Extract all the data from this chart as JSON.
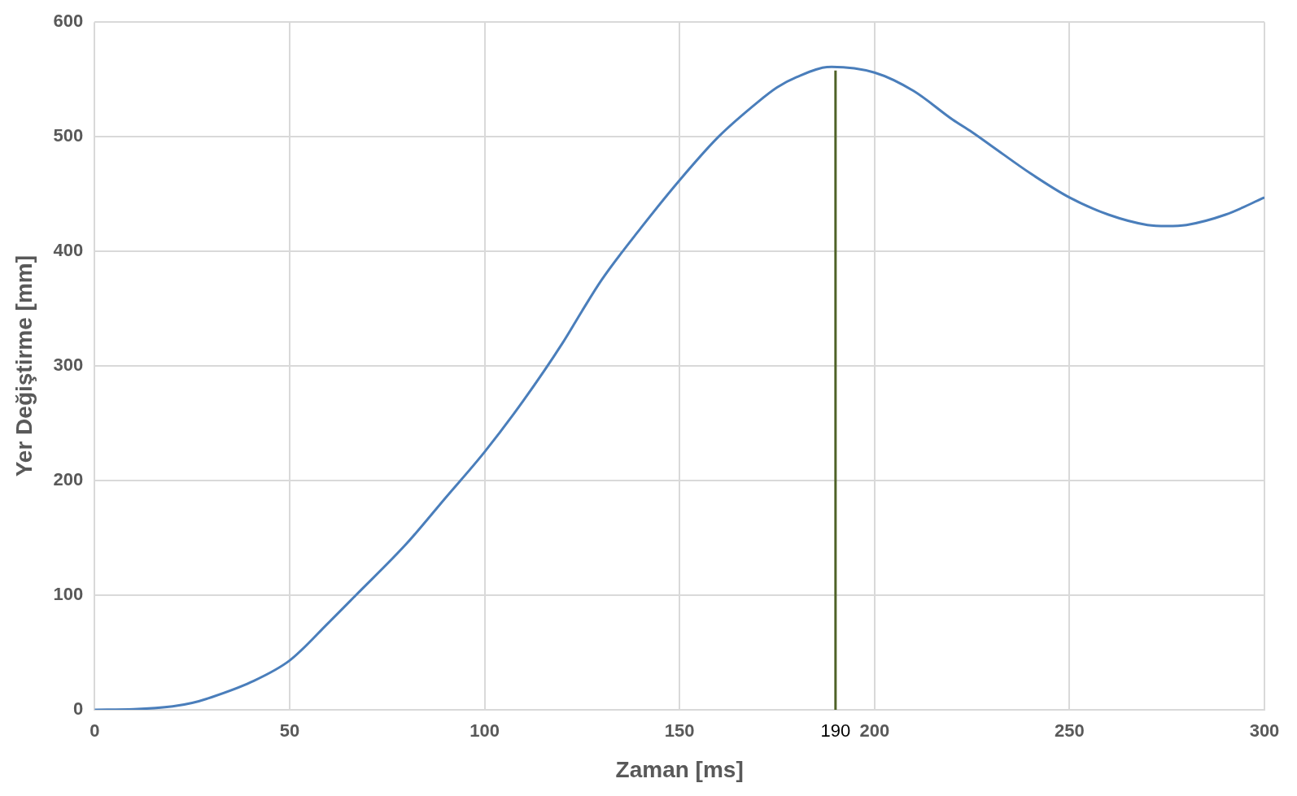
{
  "chart_data": {
    "type": "line",
    "xlabel": "Zaman [ms]",
    "ylabel": "Yer Değiştirme [mm]",
    "x": [
      0,
      10,
      20,
      25,
      30,
      40,
      50,
      60,
      67,
      80,
      90,
      100,
      110,
      120,
      125,
      130,
      140,
      150,
      160,
      170,
      175,
      180,
      189,
      200,
      210,
      220,
      225,
      230,
      240,
      250,
      260,
      270,
      275,
      280,
      290,
      300
    ],
    "series": [
      {
        "color": "#4a7ebb",
        "values": [
          0,
          0.5,
          3,
          6,
          11,
          24,
          43,
          76,
          100,
          145,
          185,
          225,
          270,
          320,
          348,
          375,
          420,
          462,
          500,
          530,
          543,
          552,
          561,
          556,
          540,
          515,
          504,
          492,
          468,
          447,
          432,
          423,
          422,
          423,
          432,
          447
        ]
      }
    ],
    "xlim": [
      0,
      300
    ],
    "xticks": [
      0,
      50,
      100,
      150,
      200,
      250,
      300
    ],
    "ylim": [
      0,
      600
    ],
    "yticks": [
      0,
      100,
      200,
      300,
      400,
      500,
      600
    ],
    "grid": true,
    "marker": "none",
    "line_style": "solid",
    "ref_lines": [
      {
        "axis": "x",
        "value": 190,
        "label": "190",
        "color": "#4f6228"
      }
    ]
  }
}
